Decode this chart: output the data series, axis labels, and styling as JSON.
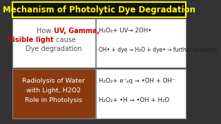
{
  "title": "Mechanism of Photolytic Dye Degradation",
  "title_color": "#FFFF00",
  "title_bg": "#111111",
  "title_border": "#FFFF00",
  "bg_color": "#333333",
  "top_left_bg": "#FFFFFF",
  "top_right_bg": "#FFFFFF",
  "bottom_left_bg": "#8B3A10",
  "bottom_right_bg": "#FFFFFF",
  "top_left_text_parts": [
    {
      "text": "How ",
      "color": "#555555"
    },
    {
      "text": "UV, Gamma,\nVisible light",
      "color": "#CC0000"
    },
    {
      "text": " cause\nDye degradation",
      "color": "#555555"
    }
  ],
  "bottom_left_lines": [
    "Radiolysis of Water",
    "with Light, H2O2",
    "Role in Photolysis"
  ],
  "bottom_left_color": "#FFFFFF",
  "eq1": "H₂O₂+ UV→ 2OH•",
  "eq2": "OH• + dye → H₂O + dye• → further oxidation",
  "eq3": "H₂O₂+ e⁻ₐq → •OH + OH⁻",
  "eq4": "H₂O₂+ •H → •OH + H₂O"
}
